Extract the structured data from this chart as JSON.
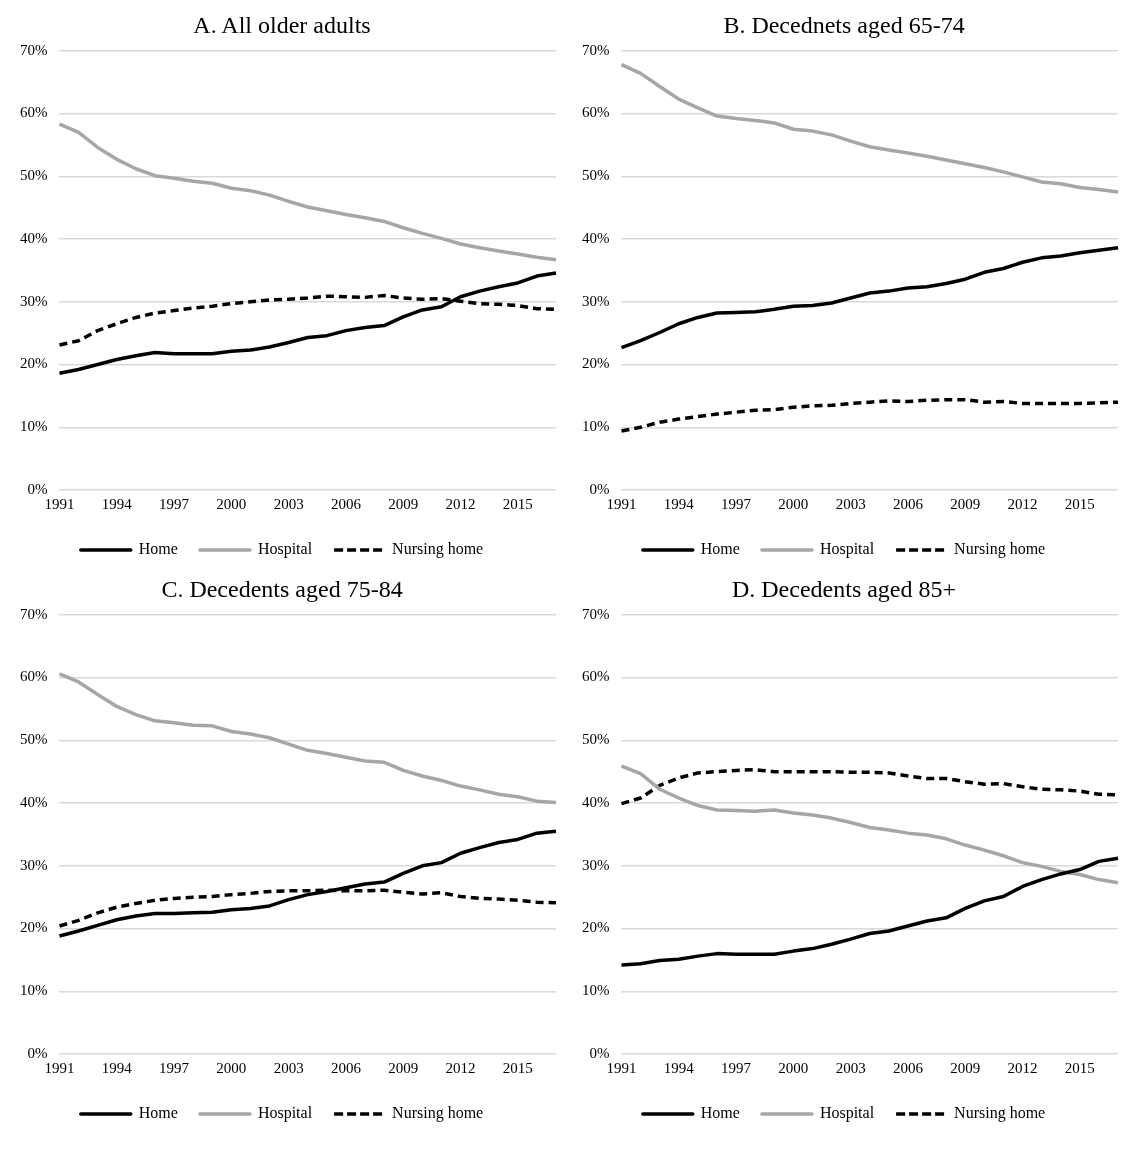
{
  "chart_data": [
    {
      "type": "line",
      "title": "A. All older adults",
      "categories": [
        "1991",
        null,
        null,
        "1994",
        null,
        null,
        "1997",
        null,
        null,
        "2000",
        null,
        null,
        "2003",
        null,
        null,
        "2006",
        null,
        null,
        "2009",
        null,
        null,
        "2012",
        null,
        null,
        "2015",
        null,
        null
      ],
      "ylim": [
        0,
        70
      ],
      "yticks": [
        {
          "value": 0,
          "label": "0%"
        },
        {
          "value": 10,
          "label": "10%"
        },
        {
          "value": 20,
          "label": "20%"
        },
        {
          "value": 30,
          "label": "30%"
        },
        {
          "value": 40,
          "label": "40%"
        },
        {
          "value": 50,
          "label": "50%"
        },
        {
          "value": 60,
          "label": "60%"
        },
        {
          "value": 70,
          "label": "70%"
        }
      ],
      "grid": "y",
      "legend": "bottom",
      "marker": "none",
      "series": [
        {
          "name": "Home",
          "color": "#000000",
          "line_style": "solid",
          "values": [
            18.6,
            19.2,
            20.0,
            20.8,
            21.4,
            21.9,
            21.7,
            21.7,
            21.7,
            22.1,
            22.3,
            22.8,
            23.5,
            24.3,
            24.6,
            25.4,
            25.9,
            26.2,
            27.6,
            28.7,
            29.2,
            30.8,
            31.7,
            32.4,
            33.0,
            34.1,
            34.6
          ]
        },
        {
          "name": "Hospital",
          "color": "#a6a6a6",
          "line_style": "solid",
          "values": [
            58.3,
            57.0,
            54.6,
            52.7,
            51.2,
            50.1,
            49.7,
            49.2,
            48.9,
            48.1,
            47.7,
            47.0,
            46.0,
            45.1,
            44.5,
            43.9,
            43.4,
            42.8,
            41.8,
            40.9,
            40.1,
            39.2,
            38.6,
            38.1,
            37.6,
            37.1,
            36.7
          ]
        },
        {
          "name": "Nursing home",
          "color": "#000000",
          "line_style": "dashed",
          "values": [
            23.1,
            23.8,
            25.4,
            26.5,
            27.5,
            28.2,
            28.6,
            29.0,
            29.3,
            29.7,
            30.0,
            30.3,
            30.4,
            30.6,
            30.9,
            30.8,
            30.7,
            31.0,
            30.6,
            30.4,
            30.5,
            30.1,
            29.7,
            29.6,
            29.4,
            28.9,
            28.8
          ]
        }
      ]
    },
    {
      "type": "line",
      "title": "B. Decednets aged 65-74",
      "categories": [
        "1991",
        null,
        null,
        "1994",
        null,
        null,
        "1997",
        null,
        null,
        "2000",
        null,
        null,
        "2003",
        null,
        null,
        "2006",
        null,
        null,
        "2009",
        null,
        null,
        "2012",
        null,
        null,
        "2015",
        null,
        null
      ],
      "ylim": [
        0,
        70
      ],
      "yticks": [
        {
          "value": 0,
          "label": "0%"
        },
        {
          "value": 10,
          "label": "10%"
        },
        {
          "value": 20,
          "label": "20%"
        },
        {
          "value": 30,
          "label": "30%"
        },
        {
          "value": 40,
          "label": "40%"
        },
        {
          "value": 50,
          "label": "50%"
        },
        {
          "value": 60,
          "label": "60%"
        },
        {
          "value": 70,
          "label": "70%"
        }
      ],
      "grid": "y",
      "legend": "bottom",
      "marker": "none",
      "series": [
        {
          "name": "Home",
          "color": "#000000",
          "line_style": "solid",
          "values": [
            22.7,
            23.8,
            25.1,
            26.5,
            27.5,
            28.2,
            28.3,
            28.4,
            28.8,
            29.3,
            29.4,
            29.8,
            30.6,
            31.4,
            31.7,
            32.2,
            32.4,
            32.9,
            33.6,
            34.7,
            35.3,
            36.3,
            37.0,
            37.3,
            37.8,
            38.2,
            38.6
          ]
        },
        {
          "name": "Hospital",
          "color": "#a6a6a6",
          "line_style": "solid",
          "values": [
            67.8,
            66.4,
            64.3,
            62.3,
            60.9,
            59.6,
            59.2,
            58.9,
            58.5,
            57.5,
            57.2,
            56.6,
            55.6,
            54.7,
            54.2,
            53.7,
            53.2,
            52.6,
            52.0,
            51.4,
            50.7,
            49.9,
            49.1,
            48.8,
            48.2,
            47.9,
            47.5
          ]
        },
        {
          "name": "Nursing home",
          "color": "#000000",
          "line_style": "dashed",
          "values": [
            9.4,
            10.0,
            10.8,
            11.3,
            11.7,
            12.1,
            12.4,
            12.7,
            12.8,
            13.2,
            13.4,
            13.5,
            13.8,
            14.0,
            14.2,
            14.1,
            14.3,
            14.4,
            14.4,
            14.0,
            14.1,
            13.8,
            13.8,
            13.8,
            13.8,
            13.9,
            14.0
          ]
        }
      ]
    },
    {
      "type": "line",
      "title": "C. Decedents aged 75-84",
      "categories": [
        "1991",
        null,
        null,
        "1994",
        null,
        null,
        "1997",
        null,
        null,
        "2000",
        null,
        null,
        "2003",
        null,
        null,
        "2006",
        null,
        null,
        "2009",
        null,
        null,
        "2012",
        null,
        null,
        "2015",
        null,
        null
      ],
      "ylim": [
        0,
        70
      ],
      "yticks": [
        {
          "value": 0,
          "label": "0%"
        },
        {
          "value": 10,
          "label": "10%"
        },
        {
          "value": 20,
          "label": "20%"
        },
        {
          "value": 30,
          "label": "30%"
        },
        {
          "value": 40,
          "label": "40%"
        },
        {
          "value": 50,
          "label": "50%"
        },
        {
          "value": 60,
          "label": "60%"
        },
        {
          "value": 70,
          "label": "70%"
        }
      ],
      "grid": "y",
      "legend": "bottom",
      "marker": "none",
      "series": [
        {
          "name": "Home",
          "color": "#000000",
          "line_style": "solid",
          "values": [
            18.8,
            19.6,
            20.5,
            21.4,
            22.0,
            22.4,
            22.4,
            22.5,
            22.6,
            23.0,
            23.2,
            23.6,
            24.6,
            25.4,
            25.9,
            26.5,
            27.1,
            27.4,
            28.8,
            30.0,
            30.5,
            32.0,
            32.9,
            33.7,
            34.2,
            35.2,
            35.5
          ]
        },
        {
          "name": "Hospital",
          "color": "#a6a6a6",
          "line_style": "solid",
          "values": [
            60.6,
            59.3,
            57.3,
            55.4,
            54.1,
            53.1,
            52.8,
            52.4,
            52.3,
            51.4,
            51.0,
            50.4,
            49.4,
            48.4,
            47.9,
            47.3,
            46.7,
            46.5,
            45.2,
            44.3,
            43.6,
            42.7,
            42.1,
            41.4,
            41.0,
            40.3,
            40.1
          ]
        },
        {
          "name": "Nursing home",
          "color": "#000000",
          "line_style": "dashed",
          "values": [
            20.4,
            21.3,
            22.5,
            23.4,
            24.0,
            24.5,
            24.8,
            25.0,
            25.1,
            25.4,
            25.6,
            25.9,
            26.0,
            26.0,
            26.1,
            26.0,
            26.0,
            26.1,
            25.8,
            25.5,
            25.7,
            25.1,
            24.8,
            24.7,
            24.5,
            24.2,
            24.1
          ]
        }
      ]
    },
    {
      "type": "line",
      "title": "D. Decedents aged 85+",
      "categories": [
        "1991",
        null,
        null,
        "1994",
        null,
        null,
        "1997",
        null,
        null,
        "2000",
        null,
        null,
        "2003",
        null,
        null,
        "2006",
        null,
        null,
        "2009",
        null,
        null,
        "2012",
        null,
        null,
        "2015",
        null,
        null
      ],
      "ylim": [
        0,
        70
      ],
      "yticks": [
        {
          "value": 0,
          "label": "0%"
        },
        {
          "value": 10,
          "label": "10%"
        },
        {
          "value": 20,
          "label": "20%"
        },
        {
          "value": 30,
          "label": "30%"
        },
        {
          "value": 40,
          "label": "40%"
        },
        {
          "value": 50,
          "label": "50%"
        },
        {
          "value": 60,
          "label": "60%"
        },
        {
          "value": 70,
          "label": "70%"
        }
      ],
      "grid": "y",
      "legend": "bottom",
      "marker": "none",
      "series": [
        {
          "name": "Home",
          "color": "#000000",
          "line_style": "solid",
          "values": [
            14.2,
            14.4,
            14.9,
            15.1,
            15.6,
            16.0,
            15.9,
            15.9,
            15.9,
            16.4,
            16.8,
            17.5,
            18.3,
            19.2,
            19.6,
            20.4,
            21.2,
            21.7,
            23.2,
            24.4,
            25.1,
            26.7,
            27.8,
            28.7,
            29.4,
            30.7,
            31.2
          ]
        },
        {
          "name": "Hospital",
          "color": "#a6a6a6",
          "line_style": "solid",
          "values": [
            45.9,
            44.7,
            42.2,
            40.8,
            39.6,
            38.9,
            38.8,
            38.7,
            38.9,
            38.4,
            38.1,
            37.6,
            36.9,
            36.1,
            35.7,
            35.2,
            34.9,
            34.3,
            33.3,
            32.5,
            31.6,
            30.5,
            29.9,
            29.1,
            28.6,
            27.8,
            27.3
          ]
        },
        {
          "name": "Nursing home",
          "color": "#000000",
          "line_style": "dashed",
          "values": [
            39.9,
            40.8,
            42.8,
            44.0,
            44.8,
            45.0,
            45.2,
            45.3,
            45.0,
            45.0,
            45.0,
            45.0,
            44.9,
            44.9,
            44.8,
            44.3,
            43.9,
            43.9,
            43.4,
            43.0,
            43.1,
            42.6,
            42.2,
            42.1,
            41.9,
            41.4,
            41.3
          ]
        }
      ]
    }
  ]
}
